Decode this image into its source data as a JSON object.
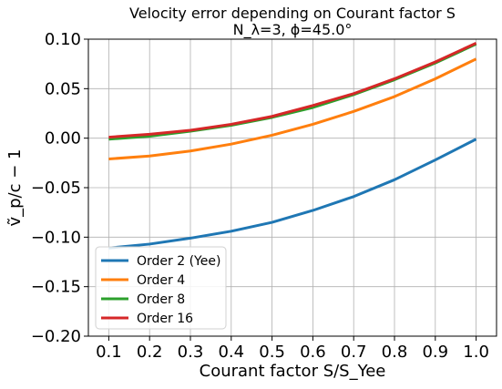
{
  "chart_data": {
    "type": "line",
    "title": "Velocity error depending on Courant factor S",
    "subtitle": "N_λ=3, ϕ=45.0°",
    "xlabel": "Courant factor S/S_Yee",
    "ylabel": "ṽ_p/c − 1",
    "xlim": [
      0.05,
      1.05
    ],
    "ylim": [
      -0.2,
      0.1
    ],
    "xticks": [
      0.1,
      0.2,
      0.3,
      0.4,
      0.5,
      0.6,
      0.7,
      0.8,
      0.9,
      1.0
    ],
    "xtick_labels": [
      "0.1",
      "0.2",
      "0.3",
      "0.4",
      "0.5",
      "0.6",
      "0.7",
      "0.8",
      "0.9",
      "1.0"
    ],
    "yticks": [
      -0.2,
      -0.15,
      -0.1,
      -0.05,
      0.0,
      0.05,
      0.1
    ],
    "ytick_labels": [
      "−0.20",
      "−0.15",
      "−0.10",
      "−0.05",
      "0.00",
      "0.05",
      "0.10"
    ],
    "grid": true,
    "legend_position": "bottom-left",
    "x": [
      0.1,
      0.2,
      0.3,
      0.4,
      0.5,
      0.6,
      0.7,
      0.8,
      0.9,
      1.0
    ],
    "series": [
      {
        "name": "Order 2 (Yee)",
        "color": "#1f77b4",
        "values": [
          -0.111,
          -0.107,
          -0.101,
          -0.094,
          -0.085,
          -0.073,
          -0.059,
          -0.042,
          -0.022,
          -0.001
        ]
      },
      {
        "name": "Order 4",
        "color": "#ff7f0e",
        "values": [
          -0.021,
          -0.018,
          -0.013,
          -0.006,
          0.003,
          0.014,
          0.027,
          0.042,
          0.06,
          0.08
        ]
      },
      {
        "name": "Order 8",
        "color": "#2ca02c",
        "values": [
          -0.001,
          0.002,
          0.007,
          0.013,
          0.021,
          0.031,
          0.044,
          0.059,
          0.076,
          0.095
        ]
      },
      {
        "name": "Order 16",
        "color": "#d62728",
        "values": [
          0.001,
          0.004,
          0.008,
          0.014,
          0.022,
          0.033,
          0.045,
          0.06,
          0.077,
          0.096
        ]
      }
    ]
  }
}
